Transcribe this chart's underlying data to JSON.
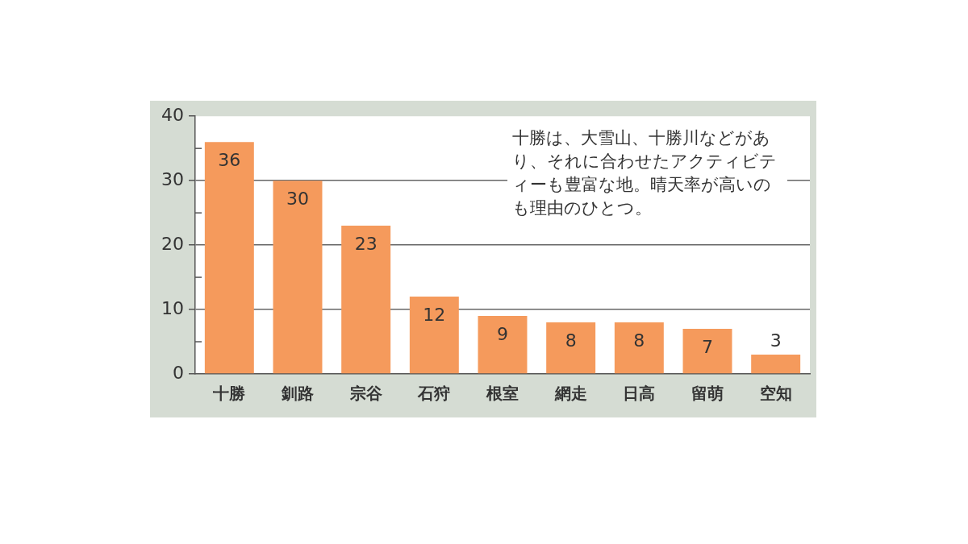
{
  "chart_data": {
    "type": "bar",
    "categories": [
      "十勝",
      "釧路",
      "宗谷",
      "石狩",
      "根室",
      "網走",
      "日高",
      "留萌",
      "空知"
    ],
    "values": [
      36,
      30,
      23,
      12,
      9,
      8,
      8,
      7,
      3
    ],
    "color": "#f59a5c",
    "ylim": [
      0,
      40
    ],
    "yticks": [
      0,
      10,
      20,
      30,
      40
    ],
    "grid": "y",
    "legend": false,
    "data_labels": true,
    "annotations": [
      "十勝は、大雪山、十勝川などがあり、それに合わせたアクティビティーも豊富な地。晴天率が高いのも理由のひとつ。"
    ]
  }
}
